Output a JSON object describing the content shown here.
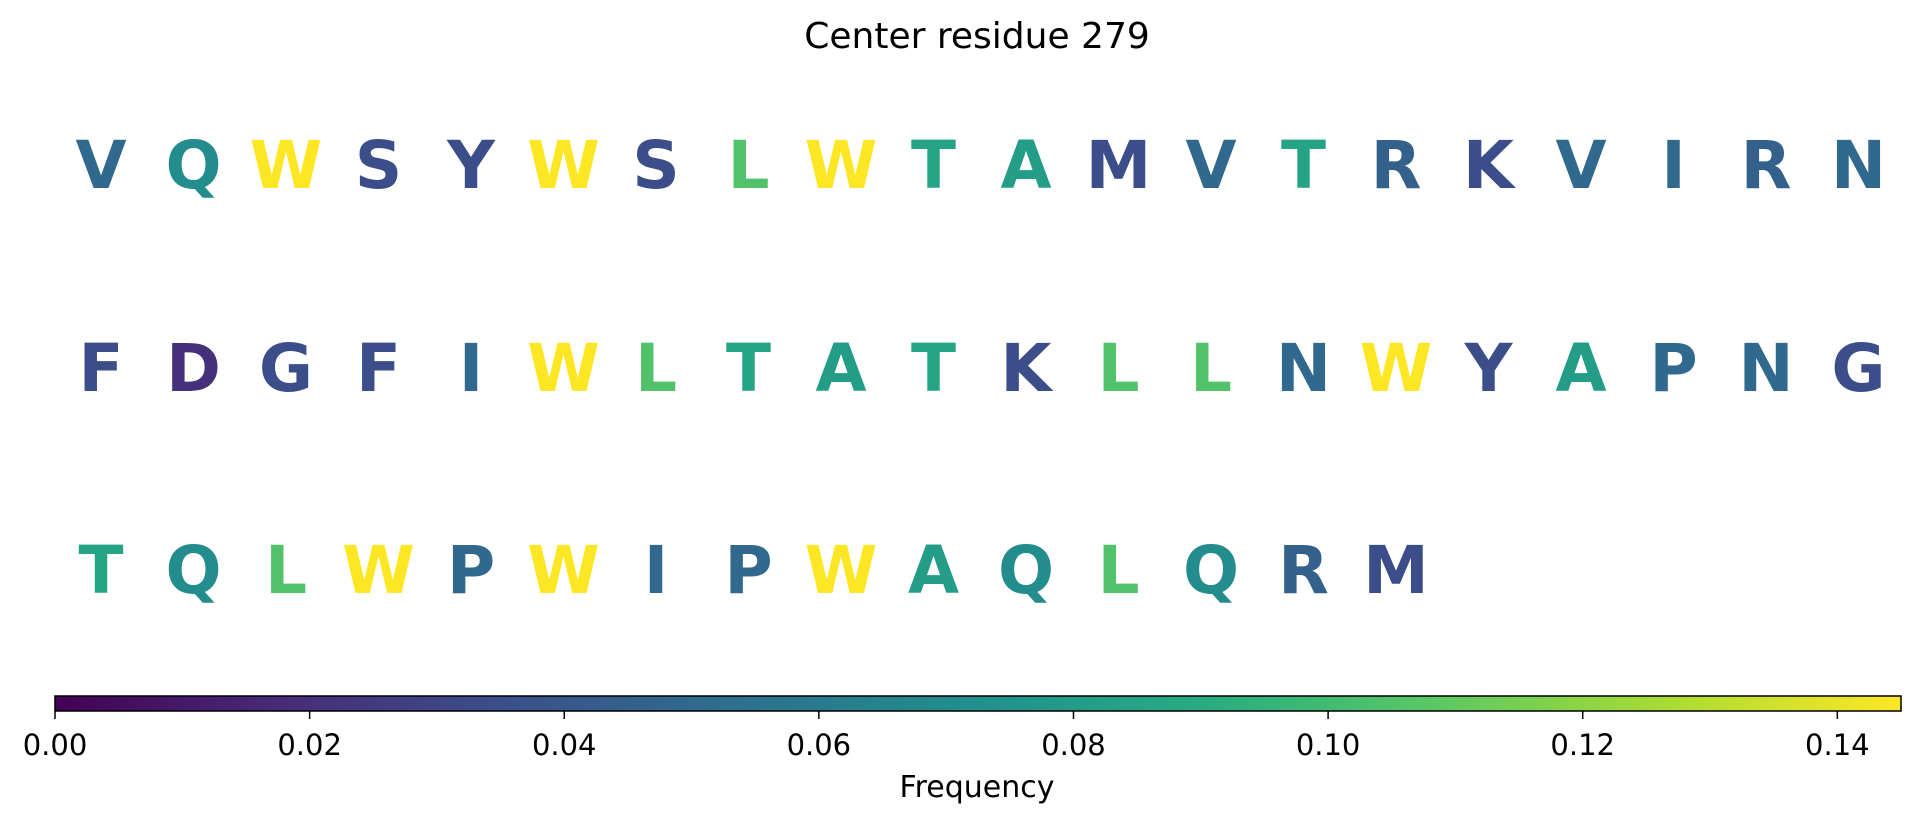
{
  "chart_data": {
    "type": "table",
    "title": "Center residue 279",
    "colorbar": {
      "label": "Frequency",
      "range": [
        0,
        0.145
      ],
      "ticks": [
        "0.00",
        "0.02",
        "0.04",
        "0.06",
        "0.08",
        "0.10",
        "0.12",
        "0.14"
      ],
      "tick_values": [
        0,
        0.02,
        0.04,
        0.06,
        0.08,
        0.1,
        0.12,
        0.14
      ],
      "colormap": "viridis"
    },
    "rows": [
      [
        {
          "residue": "V",
          "frequency": 0.05
        },
        {
          "residue": "Q",
          "frequency": 0.07
        },
        {
          "residue": "W",
          "frequency": 0.145
        },
        {
          "residue": "S",
          "frequency": 0.035
        },
        {
          "residue": "Y",
          "frequency": 0.035
        },
        {
          "residue": "W",
          "frequency": 0.145
        },
        {
          "residue": "S",
          "frequency": 0.035
        },
        {
          "residue": "L",
          "frequency": 0.105
        },
        {
          "residue": "W",
          "frequency": 0.145
        },
        {
          "residue": "T",
          "frequency": 0.085
        },
        {
          "residue": "A",
          "frequency": 0.08
        },
        {
          "residue": "M",
          "frequency": 0.035
        },
        {
          "residue": "V",
          "frequency": 0.05
        },
        {
          "residue": "T",
          "frequency": 0.085
        },
        {
          "residue": "R",
          "frequency": 0.045
        },
        {
          "residue": "K",
          "frequency": 0.035
        },
        {
          "residue": "V",
          "frequency": 0.05
        },
        {
          "residue": "I",
          "frequency": 0.05
        },
        {
          "residue": "R",
          "frequency": 0.045
        },
        {
          "residue": "N",
          "frequency": 0.05
        }
      ],
      [
        {
          "residue": "F",
          "frequency": 0.035
        },
        {
          "residue": "D",
          "frequency": 0.02
        },
        {
          "residue": "G",
          "frequency": 0.035
        },
        {
          "residue": "F",
          "frequency": 0.035
        },
        {
          "residue": "I",
          "frequency": 0.05
        },
        {
          "residue": "W",
          "frequency": 0.145
        },
        {
          "residue": "L",
          "frequency": 0.105
        },
        {
          "residue": "T",
          "frequency": 0.085
        },
        {
          "residue": "A",
          "frequency": 0.08
        },
        {
          "residue": "T",
          "frequency": 0.085
        },
        {
          "residue": "K",
          "frequency": 0.035
        },
        {
          "residue": "L",
          "frequency": 0.105
        },
        {
          "residue": "L",
          "frequency": 0.105
        },
        {
          "residue": "N",
          "frequency": 0.05
        },
        {
          "residue": "W",
          "frequency": 0.145
        },
        {
          "residue": "Y",
          "frequency": 0.035
        },
        {
          "residue": "A",
          "frequency": 0.08
        },
        {
          "residue": "P",
          "frequency": 0.05
        },
        {
          "residue": "N",
          "frequency": 0.05
        },
        {
          "residue": "G",
          "frequency": 0.035
        }
      ],
      [
        {
          "residue": "T",
          "frequency": 0.085
        },
        {
          "residue": "Q",
          "frequency": 0.07
        },
        {
          "residue": "L",
          "frequency": 0.105
        },
        {
          "residue": "W",
          "frequency": 0.145
        },
        {
          "residue": "P",
          "frequency": 0.05
        },
        {
          "residue": "W",
          "frequency": 0.145
        },
        {
          "residue": "I",
          "frequency": 0.05
        },
        {
          "residue": "P",
          "frequency": 0.05
        },
        {
          "residue": "W",
          "frequency": 0.145
        },
        {
          "residue": "A",
          "frequency": 0.08
        },
        {
          "residue": "Q",
          "frequency": 0.07
        },
        {
          "residue": "L",
          "frequency": 0.105
        },
        {
          "residue": "Q",
          "frequency": 0.07
        },
        {
          "residue": "R",
          "frequency": 0.045
        },
        {
          "residue": "M",
          "frequency": 0.035
        }
      ]
    ]
  }
}
